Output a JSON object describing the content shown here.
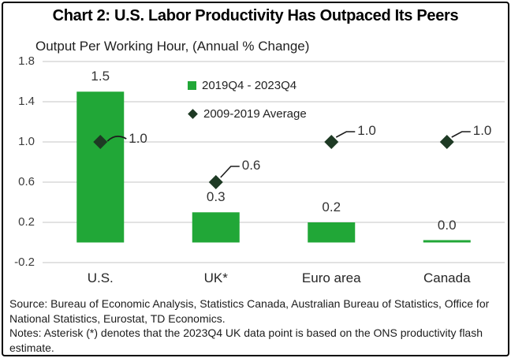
{
  "chart_data": {
    "type": "bar",
    "title": "Chart 2: U.S. Labor Productivity Has Outpaced Its Peers",
    "subtitle": "Output Per Working Hour, (Annual % Change)",
    "categories": [
      "U.S.",
      "UK*",
      "Euro area",
      "Canada"
    ],
    "series": [
      {
        "name": "2019Q4 - 2023Q4",
        "type": "bar",
        "color": "#21a737",
        "values": [
          1.5,
          0.3,
          0.2,
          0.0
        ]
      },
      {
        "name": "2009-2019 Average",
        "type": "diamond",
        "color": "#1e3a24",
        "values": [
          1.0,
          0.6,
          1.0,
          1.0
        ]
      }
    ],
    "ylim": [
      -0.2,
      1.8
    ],
    "yticks": [
      1.8,
      1.4,
      1.0,
      0.6,
      0.2,
      -0.2
    ],
    "grid": "horizontal",
    "legend_position": "inside-top-center",
    "value_label_decimals": 1
  },
  "footer": {
    "source": "Source: Bureau of Economic Analysis, Statistics Canada, Australian Bureau of Statistics, Office for National Statistics, Eurostat, TD Economics.",
    "notes": "Notes: Asterisk (*) denotes that the 2023Q4 UK data point is based on the ONS productivity flash estimate."
  },
  "colors": {
    "bar_green": "#21a737",
    "diamond_dark_green": "#1e3a24",
    "gridline": "#d9d9d9",
    "callout_line": "#1c1c1c"
  }
}
